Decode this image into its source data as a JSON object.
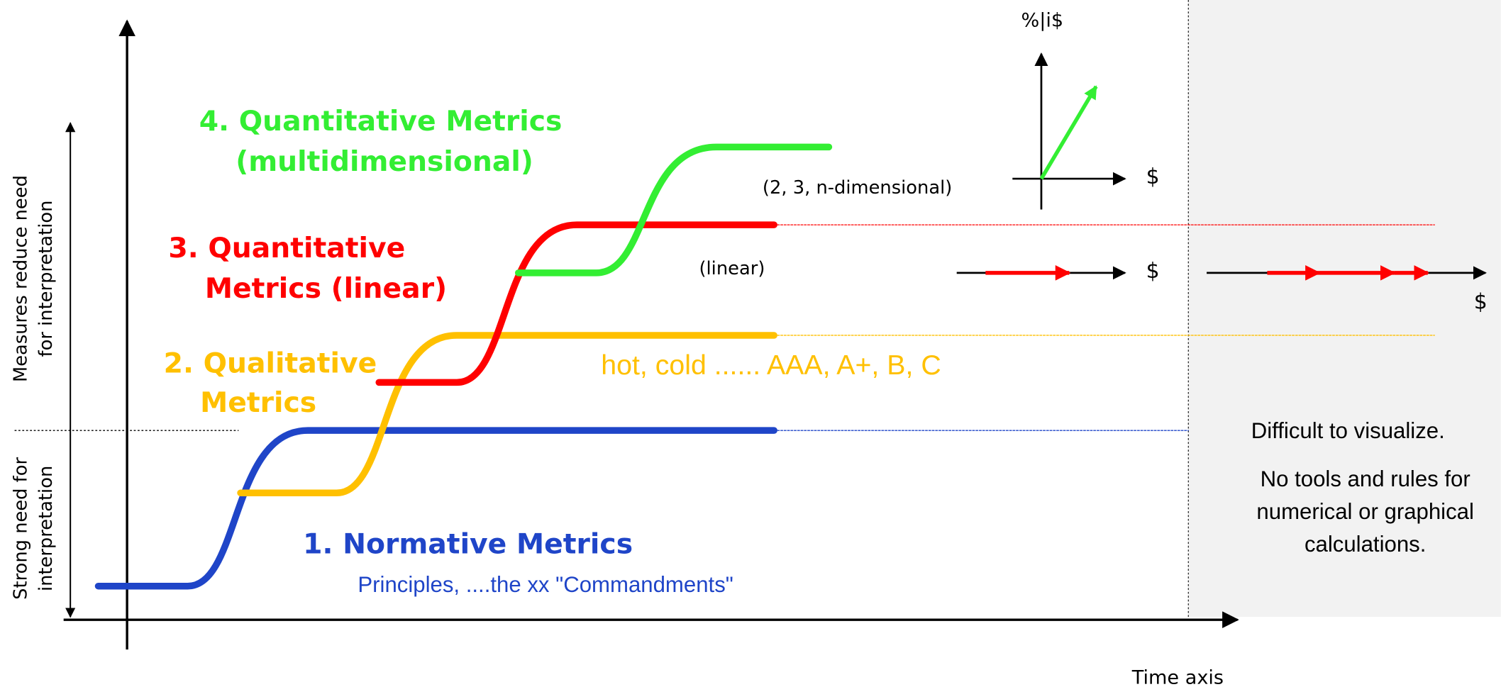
{
  "levels": [
    {
      "title": [
        "1. Normative Metrics"
      ],
      "subtitle": "Principles, ....the xx \"Commandments\""
    },
    {
      "title": [
        "2. Qualitative",
        "Metrics"
      ],
      "examples": "hot, cold ...... AAA, A+, B, C"
    },
    {
      "title": [
        "3. Quantitative",
        "Metrics (linear)"
      ],
      "note": "(linear)"
    },
    {
      "title": [
        "4. Quantitative Metrics",
        "(multidimensional)"
      ],
      "note": "(2, 3, n-dimensional)"
    }
  ],
  "y_axis_labels": {
    "upper": [
      "Measures reduce need",
      "for interpretation"
    ],
    "lower": [
      "Strong need for",
      "interpretation"
    ]
  },
  "x_axis_label": "Time axis",
  "mini_axes": {
    "y_label": "%|i$",
    "x_label": "$",
    "linear_label": "$",
    "far_label": "$"
  },
  "panel": {
    "heading": "Difficult to visualize.",
    "body": [
      "No tools and rules for",
      "numerical or graphical",
      "calculations."
    ]
  }
}
